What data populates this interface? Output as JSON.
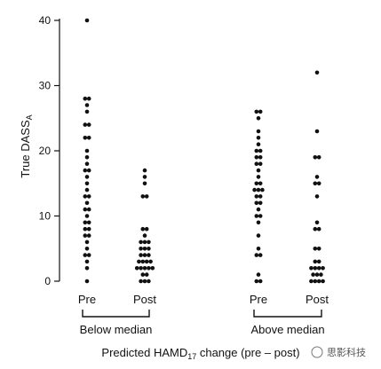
{
  "chart_data": {
    "type": "scatter",
    "title": "",
    "ylabel": {
      "main": "True DASS",
      "subscript": "A"
    },
    "xlabel": {
      "prefix": "Predicted HAMD",
      "subscript": "17",
      "suffix": " change (pre – post)"
    },
    "ylim": [
      0,
      40
    ],
    "yticks": [
      0,
      10,
      20,
      30,
      40
    ],
    "grid": false,
    "legend": "none",
    "categories": [
      "Pre",
      "Post",
      "Pre",
      "Post"
    ],
    "groups": [
      {
        "label": "Below median",
        "categories": [
          0,
          1
        ]
      },
      {
        "label": "Above median",
        "categories": [
          2,
          3
        ]
      }
    ],
    "series": [
      {
        "values": [
          40,
          28,
          28,
          27,
          26,
          24,
          24,
          22,
          22,
          20,
          19,
          18,
          17,
          17,
          16,
          15,
          14,
          13,
          13,
          12,
          11,
          11,
          10,
          9,
          9,
          8,
          8,
          7,
          7,
          6,
          5,
          4,
          4,
          3,
          2,
          0
        ]
      },
      {
        "values": [
          17,
          16,
          15,
          13,
          13,
          8,
          8,
          7,
          6,
          6,
          6,
          5,
          5,
          5,
          4,
          4,
          4,
          3,
          3,
          3,
          3,
          2,
          2,
          2,
          2,
          2,
          1,
          1,
          0,
          0,
          0
        ]
      },
      {
        "values": [
          26,
          26,
          25,
          23,
          22,
          21,
          20,
          20,
          19,
          19,
          18,
          18,
          17,
          16,
          15,
          15,
          14,
          14,
          14,
          13,
          13,
          12,
          12,
          11,
          10,
          10,
          9,
          7,
          5,
          4,
          4,
          1,
          0,
          0
        ]
      },
      {
        "values": [
          32,
          23,
          19,
          19,
          16,
          15,
          15,
          13,
          9,
          8,
          8,
          5,
          5,
          3,
          3,
          2,
          2,
          2,
          2,
          1,
          1,
          1,
          0,
          0,
          0,
          0
        ]
      }
    ]
  },
  "watermark": "思影科技"
}
